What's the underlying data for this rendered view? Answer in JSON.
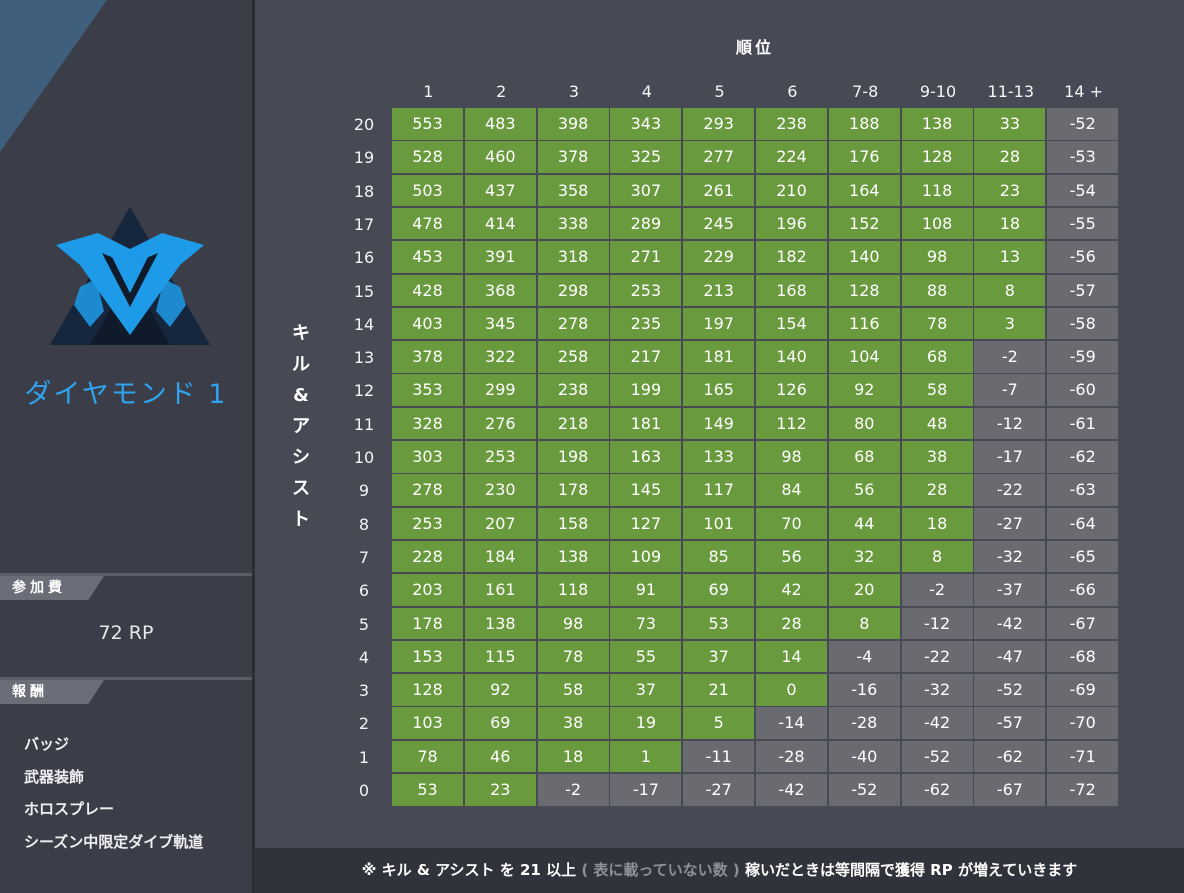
{
  "sidebar": {
    "rank_name": "ダイヤモンド 1",
    "fee_label": "参加費",
    "fee_value": "72 RP",
    "rewards_label": "報酬",
    "rewards": [
      "バッジ",
      "武器装飾",
      "ホロスプレー",
      "シーズン中限定ダイブ軌道"
    ]
  },
  "table": {
    "column_title": "順位",
    "row_title": [
      "キ",
      "ル",
      "&",
      "ア",
      "シ",
      "ス",
      "ト"
    ],
    "columns": [
      "1",
      "2",
      "3",
      "4",
      "5",
      "6",
      "7-8",
      "9-10",
      "11-13",
      "14 +"
    ],
    "rows": [
      "20",
      "19",
      "18",
      "17",
      "16",
      "15",
      "14",
      "13",
      "12",
      "11",
      "10",
      "9",
      "8",
      "7",
      "6",
      "5",
      "4",
      "3",
      "2",
      "1",
      "0"
    ],
    "values": [
      [
        553,
        483,
        398,
        343,
        293,
        238,
        188,
        138,
        33,
        -52
      ],
      [
        528,
        460,
        378,
        325,
        277,
        224,
        176,
        128,
        28,
        -53
      ],
      [
        503,
        437,
        358,
        307,
        261,
        210,
        164,
        118,
        23,
        -54
      ],
      [
        478,
        414,
        338,
        289,
        245,
        196,
        152,
        108,
        18,
        -55
      ],
      [
        453,
        391,
        318,
        271,
        229,
        182,
        140,
        98,
        13,
        -56
      ],
      [
        428,
        368,
        298,
        253,
        213,
        168,
        128,
        88,
        8,
        -57
      ],
      [
        403,
        345,
        278,
        235,
        197,
        154,
        116,
        78,
        3,
        -58
      ],
      [
        378,
        322,
        258,
        217,
        181,
        140,
        104,
        68,
        -2,
        -59
      ],
      [
        353,
        299,
        238,
        199,
        165,
        126,
        92,
        58,
        -7,
        -60
      ],
      [
        328,
        276,
        218,
        181,
        149,
        112,
        80,
        48,
        -12,
        -61
      ],
      [
        303,
        253,
        198,
        163,
        133,
        98,
        68,
        38,
        -17,
        -62
      ],
      [
        278,
        230,
        178,
        145,
        117,
        84,
        56,
        28,
        -22,
        -63
      ],
      [
        253,
        207,
        158,
        127,
        101,
        70,
        44,
        18,
        -27,
        -64
      ],
      [
        228,
        184,
        138,
        109,
        85,
        56,
        32,
        8,
        -32,
        -65
      ],
      [
        203,
        161,
        118,
        91,
        69,
        42,
        20,
        -2,
        -37,
        -66
      ],
      [
        178,
        138,
        98,
        73,
        53,
        28,
        8,
        -12,
        -42,
        -67
      ],
      [
        153,
        115,
        78,
        55,
        37,
        14,
        -4,
        -22,
        -47,
        -68
      ],
      [
        128,
        92,
        58,
        37,
        21,
        0,
        -16,
        -32,
        -52,
        -69
      ],
      [
        103,
        69,
        38,
        19,
        5,
        -14,
        -28,
        -42,
        -57,
        -70
      ],
      [
        78,
        46,
        18,
        1,
        -11,
        -28,
        -40,
        -52,
        -62,
        -71
      ],
      [
        53,
        23,
        -2,
        -17,
        -27,
        -42,
        -52,
        -62,
        -67,
        -72
      ]
    ]
  },
  "footer": {
    "part1": "※ キル & アシスト を 21 以上",
    "part2": "( 表に載っていない数 )",
    "part3": "稼いだときは等間隔で獲得 RP が増えていきます"
  },
  "colors": {
    "positive_cell": "#6a9a3e",
    "negative_cell": "#6a6b70",
    "rank_accent": "#2fa3ee",
    "background": "#474a55",
    "sidebar": "#3b3e48"
  }
}
